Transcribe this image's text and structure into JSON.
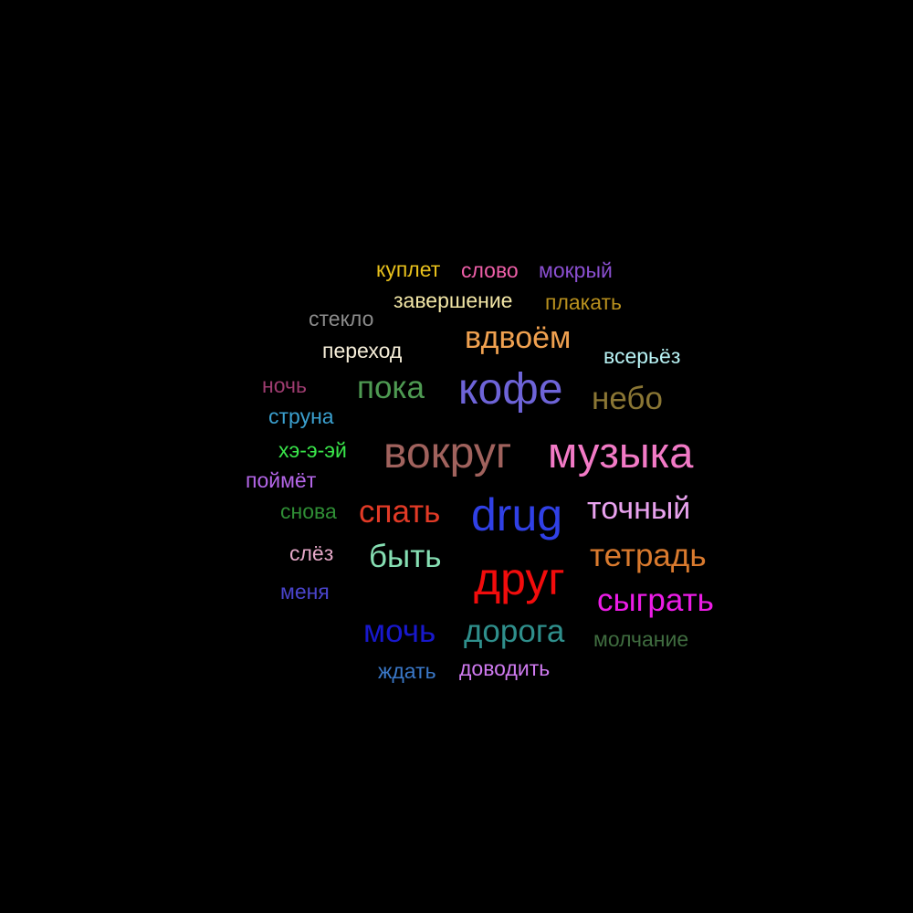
{
  "background": "#000000",
  "words": [
    {
      "text": "куплет",
      "color": "#e8c11c"
    },
    {
      "text": "слово",
      "color": "#ee5fa8"
    },
    {
      "text": "мокрый",
      "color": "#8a4fd0"
    },
    {
      "text": "завершение",
      "color": "#f2e6a6"
    },
    {
      "text": "плакать",
      "color": "#b8901e"
    },
    {
      "text": "стекло",
      "color": "#8b8b8b"
    },
    {
      "text": "переход",
      "color": "#f6eed9"
    },
    {
      "text": "вдвоём",
      "color": "#f0a150"
    },
    {
      "text": "всерьёз",
      "color": "#b8f3f5"
    },
    {
      "text": "ночь",
      "color": "#9e3c70"
    },
    {
      "text": "пока",
      "color": "#4e9a52"
    },
    {
      "text": "кофе",
      "color": "#6e64d8"
    },
    {
      "text": "небо",
      "color": "#8a7634"
    },
    {
      "text": "струна",
      "color": "#3ba0cf"
    },
    {
      "text": "хэ-э-эй",
      "color": "#39e64a"
    },
    {
      "text": "вокруг",
      "color": "#a0625d"
    },
    {
      "text": "музыка",
      "color": "#f27ac6"
    },
    {
      "text": "поймёт",
      "color": "#b466e8"
    },
    {
      "text": "снова",
      "color": "#2f8e35"
    },
    {
      "text": "спать",
      "color": "#e23a26"
    },
    {
      "text": "drug",
      "color": "#3040e6"
    },
    {
      "text": "точный",
      "color": "#e8a2ee"
    },
    {
      "text": "слёз",
      "color": "#e6a8c8"
    },
    {
      "text": "быть",
      "color": "#86dfb3"
    },
    {
      "text": "друг",
      "color": "#f20c0c"
    },
    {
      "text": "тетрадь",
      "color": "#d97a2e"
    },
    {
      "text": "меня",
      "color": "#4a44cc"
    },
    {
      "text": "сыграть",
      "color": "#ec1ce6"
    },
    {
      "text": "мочь",
      "color": "#1818cc"
    },
    {
      "text": "дорога",
      "color": "#2f8f8c"
    },
    {
      "text": "молчание",
      "color": "#3f6c3f"
    },
    {
      "text": "ждать",
      "color": "#3a78c8"
    },
    {
      "text": "доводить",
      "color": "#cf7af0"
    }
  ]
}
